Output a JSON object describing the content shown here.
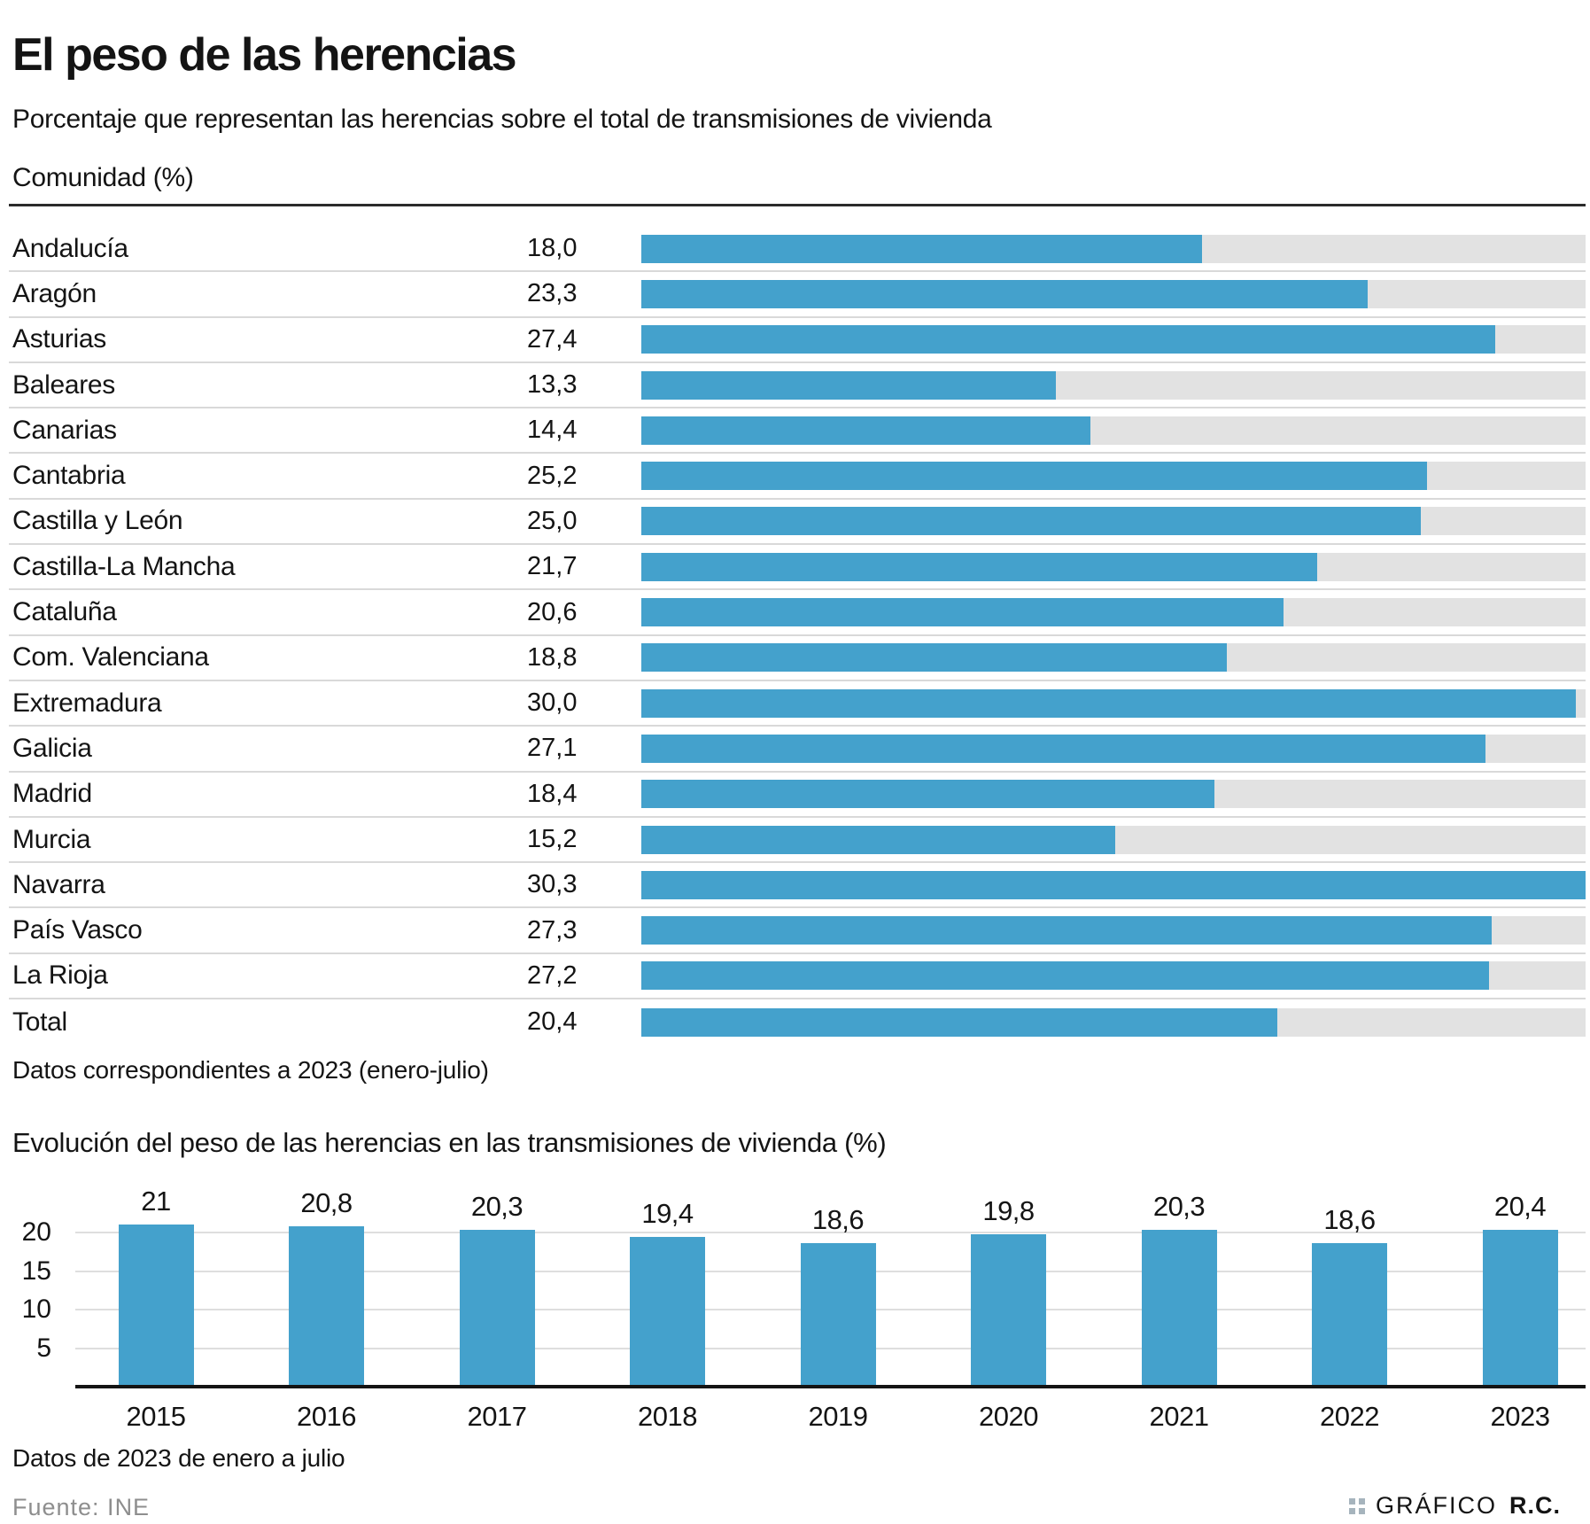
{
  "title": "El peso de las herencias",
  "subtitle": "Porcentaje que representan las herencias sobre el total de transmisiones de vivienda",
  "colors": {
    "bar_blue": "#44a1cc",
    "track_gray": "#e2e2e2",
    "rule_dark": "#2b2b2b",
    "text_dark": "#141414",
    "source_gray": "#8e8e8e"
  },
  "chart_data": [
    {
      "type": "bar",
      "orientation": "horizontal",
      "title": "Comunidad (%)",
      "note": "Datos correspondientes a 2023 (enero-julio)",
      "max": 30.3,
      "categories": [
        "Andalucía",
        "Aragón",
        "Asturias",
        "Baleares",
        "Canarias",
        "Cantabria",
        "Castilla y León",
        "Castilla-La Mancha",
        "Cataluña",
        "Com. Valenciana",
        "Extremadura",
        "Galicia",
        "Madrid",
        "Murcia",
        "Navarra",
        "País Vasco",
        "La Rioja",
        "Total"
      ],
      "values": [
        18.0,
        23.3,
        27.4,
        13.3,
        14.4,
        25.2,
        25.0,
        21.7,
        20.6,
        18.8,
        30.0,
        27.1,
        18.4,
        15.2,
        30.3,
        27.3,
        27.2,
        20.4
      ],
      "value_labels": [
        "18,0",
        "23,3",
        "27,4",
        "13,3",
        "14,4",
        "25,2",
        "25,0",
        "21,7",
        "20,6",
        "18,8",
        "30,0",
        "27,1",
        "18,4",
        "15,2",
        "30,3",
        "27,3",
        "27,2",
        "20,4"
      ]
    },
    {
      "type": "bar",
      "orientation": "vertical",
      "title": "Evolución del peso de las herencias en las transmisiones de vivienda (%)",
      "note": "Datos de 2023 de enero a julio",
      "categories": [
        "2015",
        "2016",
        "2017",
        "2018",
        "2019",
        "2020",
        "2021",
        "2022",
        "2023"
      ],
      "values": [
        21,
        20.8,
        20.3,
        19.4,
        18.6,
        19.8,
        20.3,
        18.6,
        20.4
      ],
      "value_labels": [
        "21",
        "20,8",
        "20,3",
        "19,4",
        "18,6",
        "19,8",
        "20,3",
        "18,6",
        "20,4"
      ],
      "yticks": [
        5,
        10,
        15,
        20
      ],
      "ylim": [
        0,
        21.8
      ],
      "grid": true,
      "legend": "none"
    }
  ],
  "footer": {
    "source": "Fuente: INE",
    "credit_label": "GRÁFICO",
    "credit_bold": "R.C."
  }
}
